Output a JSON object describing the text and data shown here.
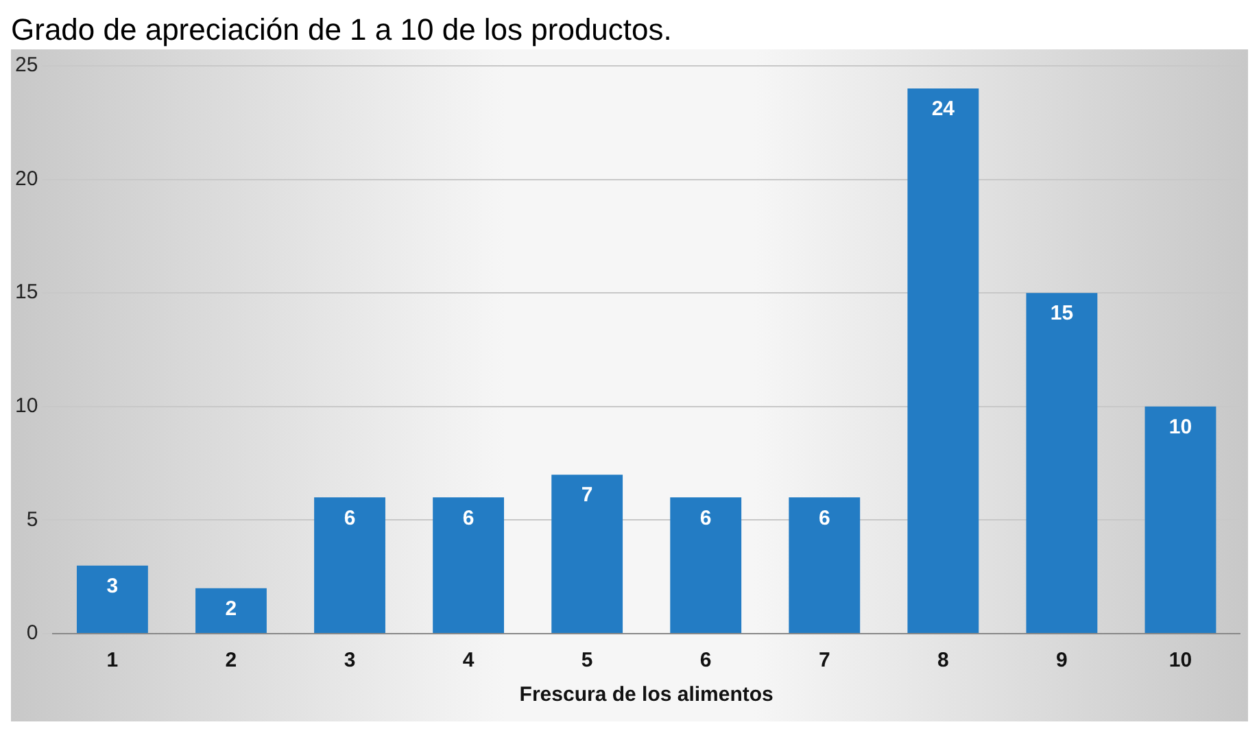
{
  "chart_data": {
    "type": "bar",
    "title": "Grado de apreciación de 1 a 10 de los productos.",
    "xlabel": "Frescura de los alimentos",
    "categories": [
      "1",
      "2",
      "3",
      "4",
      "5",
      "6",
      "7",
      "8",
      "9",
      "10"
    ],
    "values": [
      3,
      2,
      6,
      6,
      7,
      6,
      6,
      24,
      15,
      10
    ],
    "color": "#237cc4",
    "ylim": [
      0,
      25
    ],
    "yticks": [
      0,
      5,
      10,
      15,
      20,
      25
    ],
    "grid": "y",
    "legend": false,
    "data_labels": true
  }
}
